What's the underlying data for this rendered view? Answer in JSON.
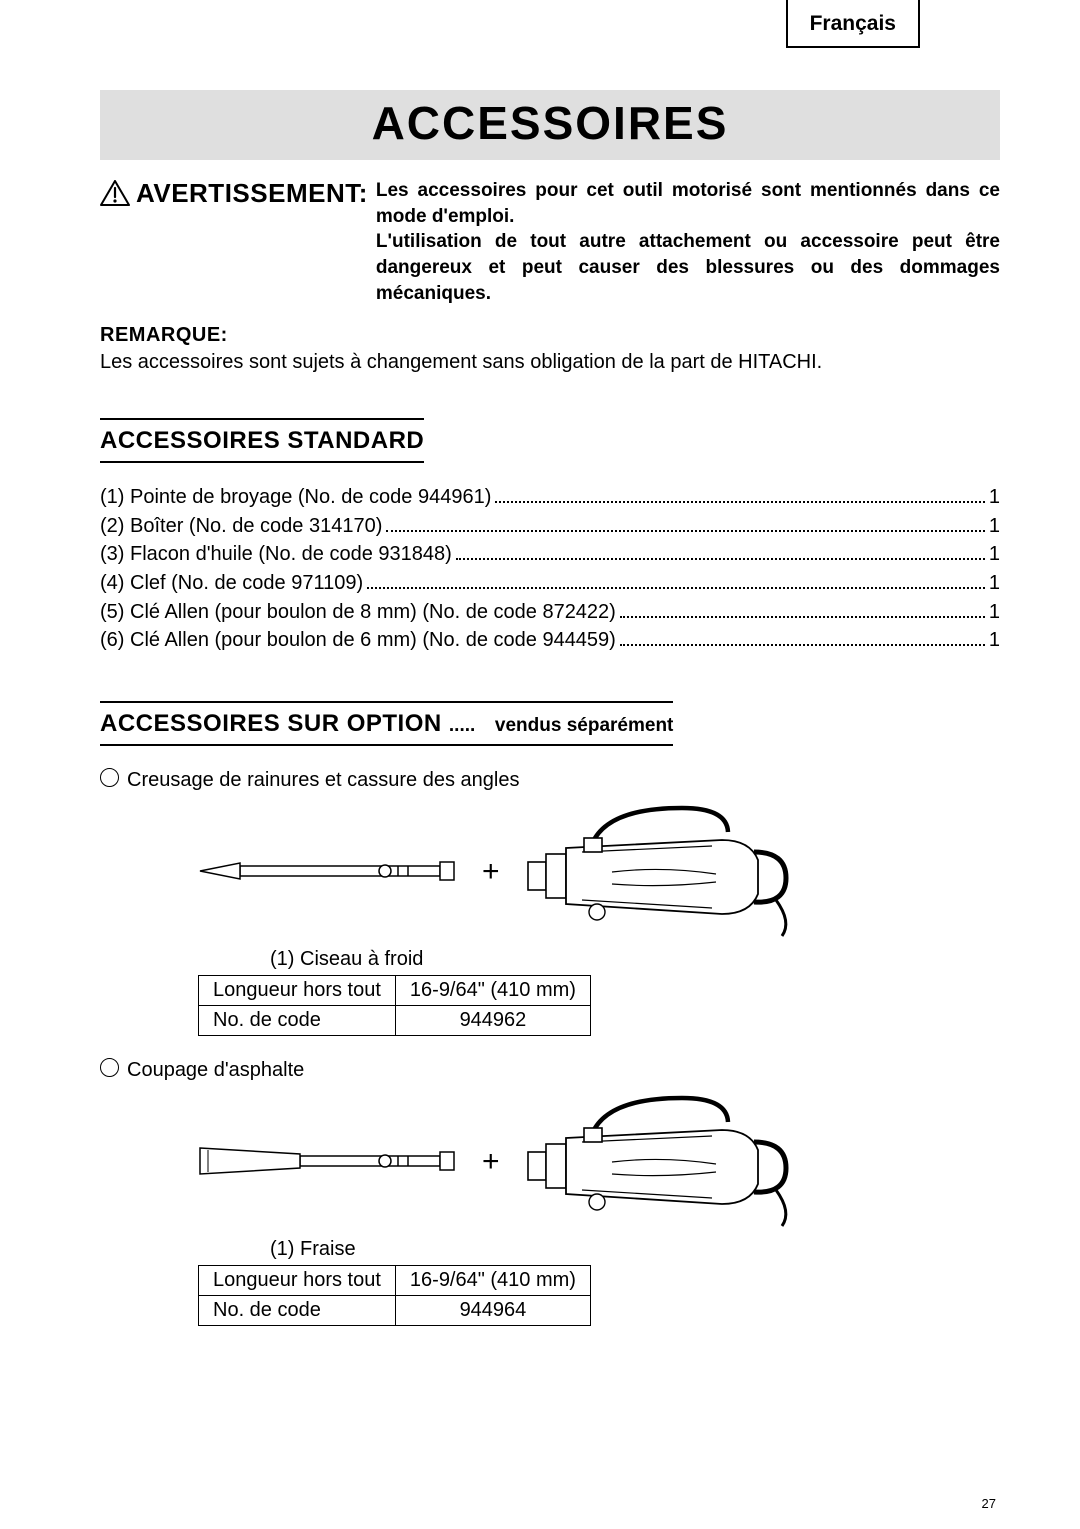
{
  "language_label": "Français",
  "title": "ACCESSOIRES",
  "warning": {
    "label": "AVERTISSEMENT:",
    "text": "Les accessoires pour cet outil motorisé sont mentionnés dans ce mode d'emploi.\nL'utilisation de tout autre attachement ou accessoire peut être dangereux et peut causer des blessures ou des dommages mécaniques."
  },
  "remark": {
    "label": "REMARQUE:",
    "text": "Les accessoires sont sujets à changement sans obligation de la part de HITACHI."
  },
  "standard": {
    "heading": "ACCESSOIRES STANDARD",
    "items": [
      {
        "label": "(1) Pointe de broyage (No. de code 944961)",
        "qty": "1"
      },
      {
        "label": "(2) Boîter (No. de code 314170)",
        "qty": "1"
      },
      {
        "label": "(3) Flacon d'huile  (No. de code 931848)",
        "qty": "1"
      },
      {
        "label": "(4) Clef  (No. de code 971109)",
        "qty": "1"
      },
      {
        "label": "(5) Clé Allen (pour boulon de 8 mm) (No. de code 872422)",
        "qty": "1"
      },
      {
        "label": "(6) Clé Allen (pour boulon de 6 mm) (No. de code 944459)",
        "qty": "1"
      }
    ]
  },
  "optional": {
    "heading_main": "ACCESSOIRES SUR OPTION",
    "heading_dots": ".....",
    "heading_sub": "vendus séparément",
    "items": [
      {
        "title": "Creusage de rainures et cassure des angles",
        "caption": "(1) Ciseau à froid",
        "length_label": "Longueur hors tout",
        "length_value": "16-9/64\" (410 mm)",
        "code_label": "No. de code",
        "code_value": "944962",
        "tool_kind": "chisel"
      },
      {
        "title": "Coupage d'asphalte",
        "caption": "(1) Fraise",
        "length_label": "Longueur hors tout",
        "length_value": "16-9/64\" (410 mm)",
        "code_label": "No. de code",
        "code_value": "944964",
        "tool_kind": "cutter"
      }
    ]
  },
  "page_number": "27",
  "colors": {
    "title_bg": "#dfdfdf",
    "text": "#000000",
    "bg": "#ffffff"
  }
}
